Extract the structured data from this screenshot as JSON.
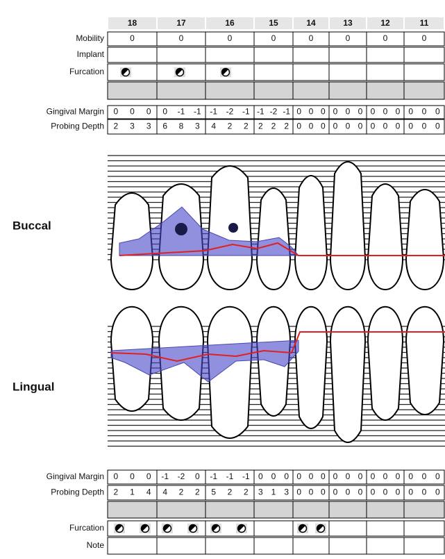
{
  "top_table": {
    "teeth": [
      "18",
      "17",
      "16",
      "15",
      "14",
      "13",
      "12",
      "11"
    ],
    "mobility": {
      "label": "Mobility",
      "values": [
        0,
        0,
        0,
        0,
        0,
        0,
        0,
        0
      ]
    },
    "implant": {
      "label": "Implant"
    },
    "furcation": {
      "label": "Furcation"
    },
    "gingival_margin": {
      "label": "Gingival Margin",
      "values": [
        [
          0,
          0,
          0
        ],
        [
          0,
          -1,
          -1
        ],
        [
          -1,
          -2,
          -1
        ],
        [
          -1,
          -2,
          -1
        ],
        [
          0,
          0,
          0
        ],
        [
          0,
          0,
          0
        ],
        [
          0,
          0,
          0
        ],
        [
          0,
          0,
          0
        ]
      ]
    },
    "probing_depth": {
      "label": "Probing Depth",
      "values": [
        [
          2,
          3,
          3
        ],
        [
          6,
          8,
          3
        ],
        [
          4,
          2,
          2
        ],
        [
          2,
          2,
          2
        ],
        [
          0,
          0,
          0
        ],
        [
          0,
          0,
          0
        ],
        [
          0,
          0,
          0
        ],
        [
          0,
          0,
          0
        ]
      ]
    }
  },
  "chart": {
    "buccal_label": "Buccal",
    "lingual_label": "Lingual"
  },
  "bottom_table": {
    "gingival_margin": {
      "label": "Gingival Margin",
      "values": [
        [
          0,
          0,
          0
        ],
        [
          -1,
          -2,
          0
        ],
        [
          -1,
          -1,
          -1
        ],
        [
          0,
          0,
          0
        ],
        [
          0,
          0,
          0
        ],
        [
          0,
          0,
          0
        ],
        [
          0,
          0,
          0
        ],
        [
          0,
          0,
          0
        ]
      ]
    },
    "probing_depth": {
      "label": "Probing Depth",
      "values": [
        [
          2,
          1,
          4
        ],
        [
          4,
          2,
          2
        ],
        [
          5,
          2,
          2
        ],
        [
          3,
          1,
          3
        ],
        [
          0,
          0,
          0
        ],
        [
          0,
          0,
          0
        ],
        [
          0,
          0,
          0
        ],
        [
          0,
          0,
          0
        ]
      ]
    },
    "furcation": {
      "label": "Furcation"
    },
    "note": {
      "label": "Note"
    }
  }
}
